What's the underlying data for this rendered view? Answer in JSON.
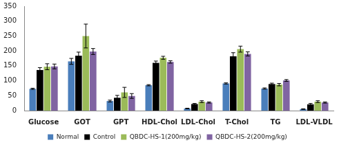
{
  "chart_data": {
    "type": "bar",
    "categories": [
      "Glucose",
      "GOT",
      "GPT",
      "HDL-Chol",
      "LDL-Chol",
      "T-Chol",
      "TG",
      "LDL-VLDL"
    ],
    "series": [
      {
        "name": "Normal",
        "color": "#4a7ebb",
        "values": [
          73,
          165,
          32,
          85,
          7,
          91,
          74,
          5
        ],
        "errors": [
          2,
          10,
          3,
          2,
          1,
          2,
          2,
          1
        ]
      },
      {
        "name": "Control",
        "color": "#000000",
        "values": [
          136,
          184,
          43,
          160,
          22,
          182,
          89,
          21
        ],
        "errors": [
          8,
          12,
          8,
          6,
          2,
          12,
          3,
          3
        ]
      },
      {
        "name": "QBDC-HS-1(200mg/kg)",
        "color": "#9bbb59",
        "values": [
          147,
          250,
          61,
          177,
          30,
          206,
          87,
          30
        ],
        "errors": [
          10,
          40,
          17,
          5,
          3,
          10,
          4,
          3
        ]
      },
      {
        "name": "QBDC-HS-2(200mg/kg)",
        "color": "#8064a2",
        "values": [
          148,
          198,
          49,
          163,
          27,
          190,
          101,
          27
        ],
        "errors": [
          8,
          10,
          8,
          4,
          2,
          7,
          3,
          2
        ]
      }
    ],
    "ylim": [
      0,
      350
    ],
    "yticks": [
      0,
      50,
      100,
      150,
      200,
      250,
      300,
      350
    ],
    "grid": false,
    "legend": "bottom"
  }
}
